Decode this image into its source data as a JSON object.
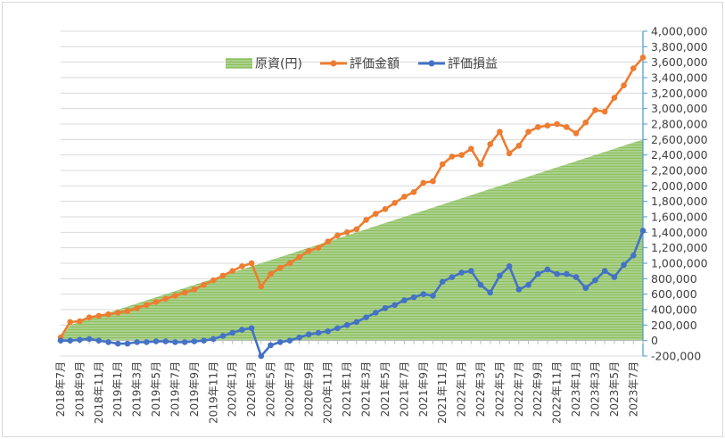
{
  "chart_data": {
    "type": "line",
    "title": "",
    "xlabel": "",
    "ylabel": "",
    "ylim": [
      -200000,
      4000000
    ],
    "ytick_step": 200000,
    "grid": true,
    "legend_position": "top",
    "colors": {
      "principal_fill": "#a9d18e",
      "principal_hatch": "#92c45f",
      "valuation": "#ed7d31",
      "profit": "#4472c4",
      "axis": "#4a9bc7",
      "grid": "#d9d9d9",
      "negative_label": "#ff0000"
    },
    "yticks": [
      "4,000,000",
      "3,800,000",
      "3,600,000",
      "3,400,000",
      "3,200,000",
      "3,000,000",
      "2,800,000",
      "2,600,000",
      "2,400,000",
      "2,200,000",
      "2,000,000",
      "1,800,000",
      "1,600,000",
      "1,400,000",
      "1,200,000",
      "1,000,000",
      "800,000",
      "600,000",
      "400,000",
      "200,000",
      "0",
      "-200,000"
    ],
    "xtick_labels": [
      "2018年7月",
      "2018年9月",
      "2018年11月",
      "2019年1月",
      "2019年3月",
      "2019年5月",
      "2019年7月",
      "2019年9月",
      "2019年11月",
      "2020年1月",
      "2020年3月",
      "2020年5月",
      "2020年7月",
      "2020年9月",
      "2020年11月",
      "2021年1月",
      "2021年3月",
      "2021年5月",
      "2021年7月",
      "2021年9月",
      "2021年11月",
      "2022年1月",
      "2022年3月",
      "2022年5月",
      "2022年7月",
      "2022年9月",
      "2022年11月",
      "2023年1月",
      "2023年3月",
      "2023年5月",
      "2023年7月"
    ],
    "categories": [
      "2018-07",
      "2018-08",
      "2018-09",
      "2018-10",
      "2018-11",
      "2018-12",
      "2019-01",
      "2019-02",
      "2019-03",
      "2019-04",
      "2019-05",
      "2019-06",
      "2019-07",
      "2019-08",
      "2019-09",
      "2019-10",
      "2019-11",
      "2019-12",
      "2020-01",
      "2020-02",
      "2020-03",
      "2020-04",
      "2020-05",
      "2020-06",
      "2020-07",
      "2020-08",
      "2020-09",
      "2020-10",
      "2020-11",
      "2020-12",
      "2021-01",
      "2021-02",
      "2021-03",
      "2021-04",
      "2021-05",
      "2021-06",
      "2021-07",
      "2021-08",
      "2021-09",
      "2021-10",
      "2021-11",
      "2021-12",
      "2022-01",
      "2022-02",
      "2022-03",
      "2022-04",
      "2022-05",
      "2022-06",
      "2022-07",
      "2022-08",
      "2022-09",
      "2022-10",
      "2022-11",
      "2022-12",
      "2023-01",
      "2023-02",
      "2023-03",
      "2023-04",
      "2023-05",
      "2023-06",
      "2023-07",
      "2023-08"
    ],
    "series": [
      {
        "name": "原資(円)",
        "kind": "area",
        "values": [
          20000,
          200000,
          240000,
          280000,
          320000,
          360000,
          400000,
          440000,
          480000,
          520000,
          560000,
          600000,
          640000,
          680000,
          720000,
          760000,
          800000,
          840000,
          880000,
          920000,
          960000,
          1000000,
          1040000,
          1080000,
          1120000,
          1160000,
          1200000,
          1240000,
          1280000,
          1320000,
          1360000,
          1400000,
          1440000,
          1480000,
          1520000,
          1560000,
          1600000,
          1640000,
          1680000,
          1720000,
          1760000,
          1800000,
          1840000,
          1880000,
          1920000,
          1960000,
          2000000,
          2040000,
          2080000,
          2120000,
          2160000,
          2200000,
          2240000,
          2280000,
          2320000,
          2360000,
          2400000,
          2440000,
          2480000,
          2520000,
          2560000,
          2600000
        ]
      },
      {
        "name": "評価金額",
        "kind": "line",
        "values": [
          40000,
          240000,
          250000,
          300000,
          320000,
          340000,
          360000,
          380000,
          420000,
          460000,
          500000,
          540000,
          580000,
          620000,
          660000,
          720000,
          780000,
          840000,
          900000,
          960000,
          1000000,
          700000,
          860000,
          940000,
          1000000,
          1080000,
          1160000,
          1200000,
          1280000,
          1360000,
          1400000,
          1440000,
          1560000,
          1640000,
          1700000,
          1780000,
          1860000,
          1920000,
          2040000,
          2060000,
          2280000,
          2380000,
          2400000,
          2480000,
          2280000,
          2540000,
          2700000,
          2420000,
          2520000,
          2700000,
          2760000,
          2780000,
          2800000,
          2760000,
          2680000,
          2820000,
          2980000,
          2960000,
          3140000,
          3300000,
          3520000,
          3660000
        ]
      },
      {
        "name": "評価損益",
        "kind": "line",
        "values": [
          0,
          0,
          10000,
          20000,
          0,
          -20000,
          -40000,
          -40000,
          -20000,
          -20000,
          -10000,
          -10000,
          -20000,
          -20000,
          -10000,
          0,
          20000,
          60000,
          100000,
          140000,
          160000,
          -200000,
          -60000,
          -20000,
          0,
          40000,
          80000,
          100000,
          120000,
          160000,
          200000,
          240000,
          300000,
          360000,
          420000,
          460000,
          520000,
          560000,
          600000,
          580000,
          760000,
          820000,
          880000,
          900000,
          720000,
          620000,
          840000,
          960000,
          660000,
          720000,
          860000,
          920000,
          860000,
          860000,
          820000,
          680000,
          780000,
          900000,
          820000,
          980000,
          1100000,
          1420000
        ]
      }
    ]
  }
}
